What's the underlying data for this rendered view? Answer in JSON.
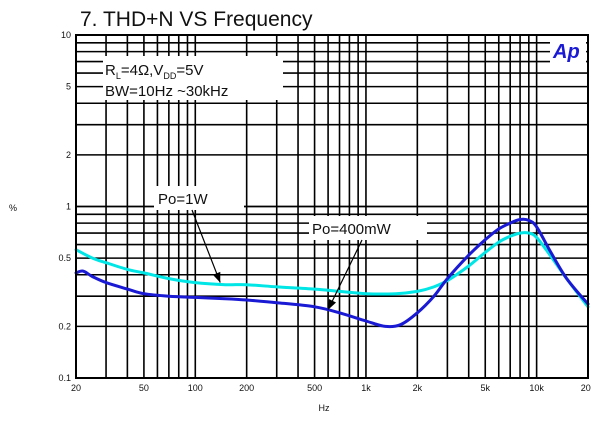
{
  "chart_data": {
    "type": "line",
    "title": "7. THD+N VS Frequency",
    "xlabel": "Hz",
    "ylabel": "%",
    "xscale": "log",
    "yscale": "log",
    "xlim": [
      20,
      20000
    ],
    "ylim": [
      0.1,
      10
    ],
    "grid": true,
    "x_tick_labels": [
      "20",
      "50",
      "100",
      "200",
      "500",
      "1k",
      "2k",
      "5k",
      "10k",
      "20k"
    ],
    "x_tick_values": [
      20,
      50,
      100,
      200,
      500,
      1000,
      2000,
      5000,
      10000,
      20000
    ],
    "y_tick_labels": [
      "0.1",
      "0.2",
      "0.5",
      "1",
      "2",
      "5",
      "10"
    ],
    "y_tick_values": [
      0.1,
      0.2,
      0.5,
      1,
      2,
      5,
      10
    ],
    "conditions": {
      "line1_parts": [
        "R",
        "L",
        "=4Ω,V",
        "DD",
        "=5V"
      ],
      "line2": "BW=10Hz ~30kHz"
    },
    "logo": "Ap",
    "series": [
      {
        "name": "Po=1W",
        "color": "#00e5e5",
        "x": [
          20,
          25,
          30,
          40,
          50,
          70,
          100,
          150,
          200,
          300,
          500,
          700,
          1000,
          1500,
          2000,
          2500,
          3000,
          4000,
          5000,
          6000,
          7000,
          8000,
          9000,
          10000,
          12000,
          15000,
          20000
        ],
        "y": [
          0.56,
          0.5,
          0.47,
          0.43,
          0.41,
          0.38,
          0.36,
          0.35,
          0.35,
          0.34,
          0.33,
          0.32,
          0.31,
          0.31,
          0.32,
          0.34,
          0.37,
          0.45,
          0.54,
          0.62,
          0.67,
          0.7,
          0.7,
          0.66,
          0.52,
          0.38,
          0.26
        ]
      },
      {
        "name": "Po=400mW",
        "color": "#1a1ad4",
        "x": [
          20,
          22,
          25,
          30,
          40,
          50,
          70,
          100,
          150,
          200,
          300,
          500,
          700,
          1000,
          1300,
          1600,
          2000,
          2500,
          3000,
          4000,
          5000,
          6000,
          7000,
          8000,
          9000,
          10000,
          12000,
          15000,
          20000
        ],
        "y": [
          0.41,
          0.42,
          0.39,
          0.36,
          0.33,
          0.31,
          0.3,
          0.295,
          0.29,
          0.285,
          0.275,
          0.26,
          0.24,
          0.215,
          0.2,
          0.205,
          0.24,
          0.3,
          0.38,
          0.52,
          0.64,
          0.74,
          0.8,
          0.84,
          0.83,
          0.76,
          0.55,
          0.38,
          0.27
        ]
      }
    ],
    "annotations": [
      {
        "label": "Po=1W",
        "points_to_x": 140,
        "points_to_y": 0.36
      },
      {
        "label": "Po=400mW",
        "points_to_x": 600,
        "points_to_y": 0.25
      }
    ]
  }
}
